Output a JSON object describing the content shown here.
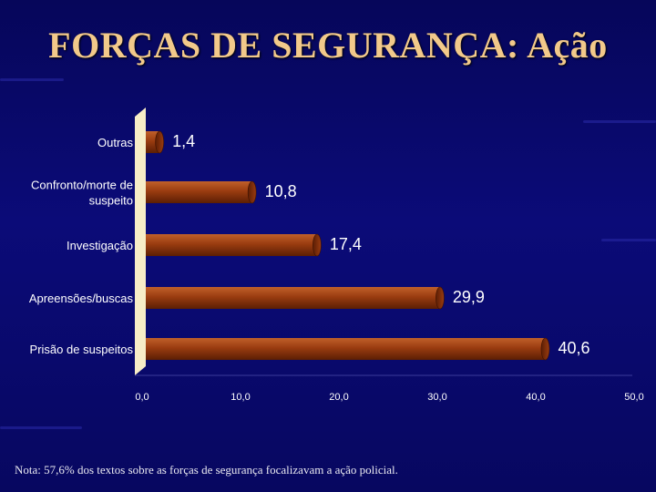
{
  "slide": {
    "title": "FORÇAS DE SEGURANÇA: Ação",
    "note": "Nota: 57,6% dos textos sobre as forças de segurança focalizavam a ação policial."
  },
  "chart_data": {
    "type": "bar",
    "orientation": "horizontal",
    "categories": [
      "Outras",
      "Confronto/morte de suspeito",
      "Investigação",
      "Apreensões/buscas",
      "Prisão de suspeitos"
    ],
    "category_lines": [
      [
        "Outras"
      ],
      [
        "Confronto/morte de",
        "suspeito"
      ],
      [
        "Investigação"
      ],
      [
        "Apreensões/buscas"
      ],
      [
        "Prisão de suspeitos"
      ]
    ],
    "values": [
      1.4,
      10.8,
      17.4,
      29.9,
      40.6
    ],
    "value_labels": [
      "1,4",
      "10,8",
      "17,4",
      "29,9",
      "40,6"
    ],
    "xlim": [
      0,
      50
    ],
    "x_ticks": [
      "0,0",
      "10,0",
      "20,0",
      "30,0",
      "40,0",
      "50,0"
    ],
    "title": "",
    "xlabel": "",
    "ylabel": "",
    "grid": false,
    "colors": {
      "bar": "#9a3c10",
      "bar_dark": "#5c1e04",
      "bar_light": "#c0602a",
      "axis_wall": "#f7edc7"
    }
  }
}
